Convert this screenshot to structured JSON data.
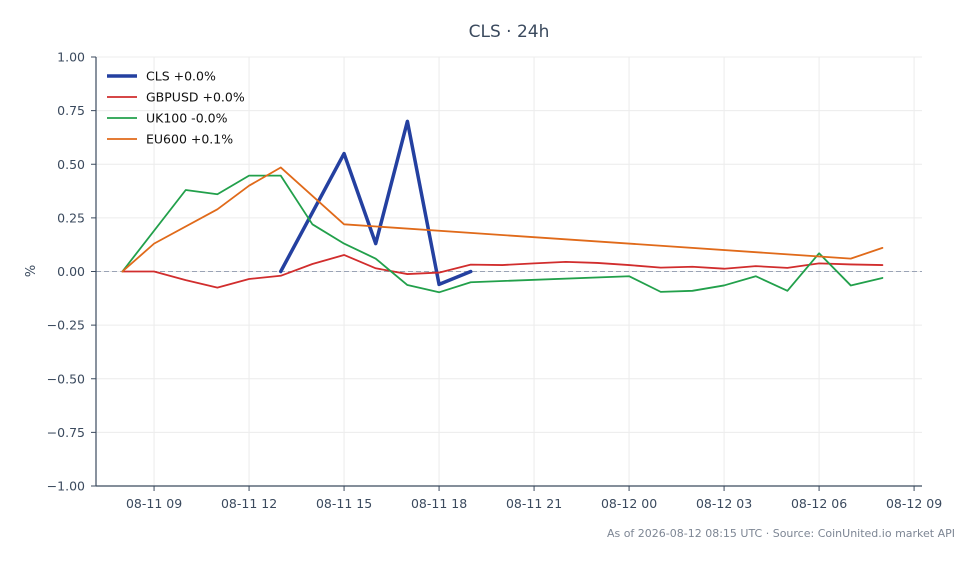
{
  "colors": {
    "CLS": "#2440a0",
    "GBPUSD": "#d12d2d",
    "UK100": "#22a04b",
    "EU600": "#e06a1a",
    "grid": "#ececec",
    "axis": "#3b4a5e",
    "zero": "#9aa3b5"
  },
  "chart_data": {
    "type": "line",
    "title": "CLS · 24h",
    "xlabel": "",
    "ylabel": "%",
    "ylim": [
      -1.0,
      1.0
    ],
    "yticks": [
      1.0,
      0.75,
      0.5,
      0.25,
      0.0,
      -0.25,
      -0.5,
      -0.75,
      -1.0
    ],
    "ytick_labels": [
      "1.00",
      "0.75",
      "0.50",
      "0.25",
      "0.00",
      "−0.25",
      "−0.50",
      "−0.75",
      "−1.00"
    ],
    "xlim": [
      "2026-08-11 07:10",
      "2026-08-12 09:15"
    ],
    "xticks": [
      "2026-08-11 09:00",
      "2026-08-11 12:00",
      "2026-08-11 15:00",
      "2026-08-11 18:00",
      "2026-08-11 21:00",
      "2026-08-12 00:00",
      "2026-08-12 03:00",
      "2026-08-12 06:00",
      "2026-08-12 09:00"
    ],
    "xtick_labels": [
      "08-11 09",
      "08-11 12",
      "08-11 15",
      "08-11 18",
      "08-11 21",
      "08-12 00",
      "08-12 03",
      "08-12 06",
      "08-12 09"
    ],
    "grid": true,
    "zero_line": true,
    "legend_position": "top-left",
    "series": [
      {
        "name": "CLS +0.0%",
        "color_key": "CLS",
        "width": 3.5,
        "x": [
          "2026-08-11 13:00",
          "2026-08-11 15:00",
          "2026-08-11 16:00",
          "2026-08-11 17:00",
          "2026-08-11 18:00",
          "2026-08-11 19:00"
        ],
        "y": [
          0.0,
          0.55,
          0.13,
          0.7,
          -0.06,
          0.0
        ]
      },
      {
        "name": "GBPUSD +0.0%",
        "color_key": "GBPUSD",
        "width": 1.8,
        "x": [
          "2026-08-11 08:00",
          "2026-08-11 09:00",
          "2026-08-11 10:00",
          "2026-08-11 11:00",
          "2026-08-11 12:00",
          "2026-08-11 13:00",
          "2026-08-11 14:00",
          "2026-08-11 15:00",
          "2026-08-11 16:00",
          "2026-08-11 17:00",
          "2026-08-11 18:00",
          "2026-08-11 19:00",
          "2026-08-11 20:00",
          "2026-08-11 21:00",
          "2026-08-11 22:00",
          "2026-08-11 23:00",
          "2026-08-12 00:00",
          "2026-08-12 01:00",
          "2026-08-12 02:00",
          "2026-08-12 03:00",
          "2026-08-12 04:00",
          "2026-08-12 05:00",
          "2026-08-12 06:00",
          "2026-08-12 07:00",
          "2026-08-12 08:00"
        ],
        "y": [
          0.0,
          0.0,
          -0.04,
          -0.075,
          -0.035,
          -0.02,
          0.035,
          0.077,
          0.015,
          -0.012,
          -0.005,
          0.032,
          0.03,
          0.038,
          0.045,
          0.04,
          0.03,
          0.018,
          0.022,
          0.013,
          0.025,
          0.017,
          0.038,
          0.033,
          0.03
        ]
      },
      {
        "name": "UK100 -0.0%",
        "color_key": "UK100",
        "width": 1.8,
        "x": [
          "2026-08-11 08:00",
          "2026-08-11 10:00",
          "2026-08-11 11:00",
          "2026-08-11 12:00",
          "2026-08-11 13:00",
          "2026-08-11 14:00",
          "2026-08-11 15:00",
          "2026-08-11 16:00",
          "2026-08-11 17:00",
          "2026-08-11 18:00",
          "2026-08-11 19:00",
          "2026-08-12 00:00",
          "2026-08-12 01:00",
          "2026-08-12 02:00",
          "2026-08-12 03:00",
          "2026-08-12 04:00",
          "2026-08-12 05:00",
          "2026-08-12 06:00",
          "2026-08-12 07:00",
          "2026-08-12 08:00"
        ],
        "y": [
          0.0,
          0.38,
          0.36,
          0.447,
          0.447,
          0.22,
          0.13,
          0.06,
          -0.063,
          -0.097,
          -0.05,
          -0.022,
          -0.095,
          -0.09,
          -0.065,
          -0.022,
          -0.09,
          0.085,
          -0.065,
          -0.03
        ]
      },
      {
        "name": "EU600 +0.1%",
        "color_key": "EU600",
        "width": 1.8,
        "x": [
          "2026-08-11 08:00",
          "2026-08-11 09:00",
          "2026-08-11 11:00",
          "2026-08-11 12:00",
          "2026-08-11 13:00",
          "2026-08-11 15:00",
          "2026-08-12 07:00",
          "2026-08-12 08:00"
        ],
        "y": [
          0.0,
          0.13,
          0.29,
          0.4,
          0.485,
          0.22,
          0.06,
          0.11
        ]
      }
    ]
  },
  "footer": "As of 2026-08-12 08:15 UTC · Source: CoinUnited.io market API"
}
